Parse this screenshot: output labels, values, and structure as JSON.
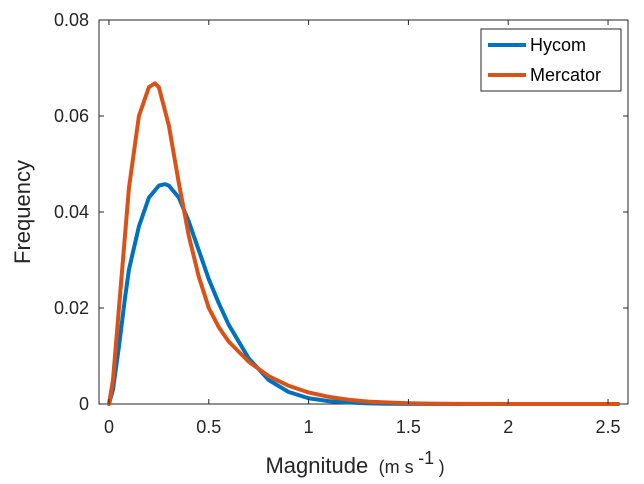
{
  "chart_data": {
    "type": "line",
    "title": "",
    "xlabel": "Magnitude",
    "xlabel_unit": {
      "base": "(m s",
      "exponent": "-1",
      "close": ")"
    },
    "ylabel": "Frequency",
    "xlim": [
      -0.05,
      2.6
    ],
    "ylim": [
      0,
      0.08
    ],
    "x_ticks": [
      0,
      0.5,
      1,
      1.5,
      2,
      2.5
    ],
    "x_tick_labels": [
      "0",
      "0.5",
      "1",
      "1.5",
      "2",
      "2.5"
    ],
    "y_ticks": [
      0,
      0.02,
      0.04,
      0.06,
      0.08
    ],
    "y_tick_labels": [
      "0",
      "0.02",
      "0.04",
      "0.06",
      "0.08"
    ],
    "grid": false,
    "legend_position": "top-right",
    "series": [
      {
        "name": "Hycom",
        "color": "#0072BD",
        "x": [
          0,
          0.02,
          0.05,
          0.08,
          0.1,
          0.15,
          0.2,
          0.25,
          0.28,
          0.3,
          0.35,
          0.4,
          0.45,
          0.5,
          0.55,
          0.6,
          0.7,
          0.8,
          0.9,
          1.0,
          1.1,
          1.2,
          1.3,
          1.4,
          1.5,
          1.75,
          2.0,
          2.25,
          2.55
        ],
        "y": [
          0,
          0.003,
          0.012,
          0.022,
          0.028,
          0.037,
          0.043,
          0.0455,
          0.0458,
          0.0455,
          0.043,
          0.038,
          0.032,
          0.026,
          0.021,
          0.0165,
          0.0095,
          0.005,
          0.0025,
          0.0012,
          0.0006,
          0.0003,
          0.00012,
          5e-05,
          2e-05,
          0,
          0,
          0,
          0
        ]
      },
      {
        "name": "Mercator",
        "color": "#D95319",
        "x": [
          0,
          0.02,
          0.05,
          0.08,
          0.1,
          0.15,
          0.2,
          0.23,
          0.25,
          0.3,
          0.35,
          0.4,
          0.45,
          0.5,
          0.55,
          0.6,
          0.7,
          0.8,
          0.9,
          1.0,
          1.1,
          1.2,
          1.3,
          1.4,
          1.5,
          1.6,
          1.75,
          2.0,
          2.25,
          2.55
        ],
        "y": [
          0,
          0.005,
          0.02,
          0.035,
          0.045,
          0.06,
          0.066,
          0.0668,
          0.066,
          0.058,
          0.046,
          0.035,
          0.0265,
          0.02,
          0.016,
          0.013,
          0.0088,
          0.0058,
          0.0038,
          0.0024,
          0.0015,
          0.0009,
          0.0005,
          0.0003,
          0.00015,
          8e-05,
          3e-05,
          0,
          0,
          0
        ]
      }
    ]
  }
}
